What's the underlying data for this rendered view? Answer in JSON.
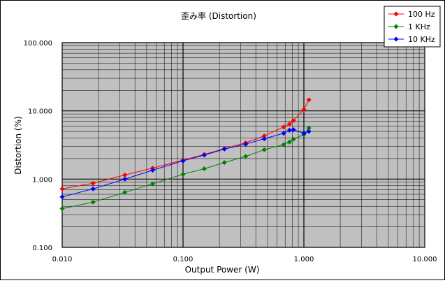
{
  "chart_data": {
    "type": "scatter",
    "title": "歪み率 (Distortion)",
    "xlabel": "Output Power (W)",
    "ylabel": "Distortion (%)",
    "x_scale": "log",
    "y_scale": "log",
    "xlim": [
      0.01,
      10
    ],
    "ylim": [
      0.1,
      100
    ],
    "grid": true,
    "legend_position": "top-right",
    "plot_background": "#c0c0c0",
    "x_ticks": [
      "0.010",
      "0.100",
      "1.000",
      "10.000"
    ],
    "y_ticks": [
      "100.000",
      "10.000",
      "1.000",
      "0.100"
    ],
    "series": [
      {
        "name": "100 Hz",
        "color": "#ff0000",
        "points": [
          [
            0.01,
            0.72
          ],
          [
            0.018,
            0.87
          ],
          [
            0.033,
            1.15
          ],
          [
            0.056,
            1.45
          ],
          [
            0.1,
            1.9
          ],
          [
            0.15,
            2.3
          ],
          [
            0.22,
            2.8
          ],
          [
            0.33,
            3.4
          ],
          [
            0.47,
            4.3
          ],
          [
            0.68,
            5.8
          ],
          [
            0.76,
            6.4
          ],
          [
            0.82,
            7.2
          ],
          [
            1.0,
            10.5
          ],
          [
            1.1,
            14.5
          ]
        ]
      },
      {
        "name": "1 KHz",
        "color": "#008000",
        "points": [
          [
            0.01,
            0.37
          ],
          [
            0.018,
            0.46
          ],
          [
            0.033,
            0.64
          ],
          [
            0.056,
            0.85
          ],
          [
            0.1,
            1.18
          ],
          [
            0.15,
            1.42
          ],
          [
            0.22,
            1.75
          ],
          [
            0.33,
            2.15
          ],
          [
            0.47,
            2.7
          ],
          [
            0.68,
            3.2
          ],
          [
            0.76,
            3.5
          ],
          [
            0.82,
            3.85
          ],
          [
            1.0,
            4.5
          ],
          [
            1.1,
            5.6
          ]
        ]
      },
      {
        "name": "10 KHz",
        "color": "#0000ff",
        "points": [
          [
            0.01,
            0.55
          ],
          [
            0.018,
            0.72
          ],
          [
            0.033,
            1.0
          ],
          [
            0.056,
            1.35
          ],
          [
            0.1,
            1.85
          ],
          [
            0.15,
            2.25
          ],
          [
            0.22,
            2.75
          ],
          [
            0.33,
            3.25
          ],
          [
            0.47,
            3.9
          ],
          [
            0.68,
            4.7
          ],
          [
            0.76,
            5.2
          ],
          [
            0.82,
            5.3
          ],
          [
            1.0,
            4.7
          ],
          [
            1.1,
            5.0
          ]
        ]
      }
    ]
  }
}
